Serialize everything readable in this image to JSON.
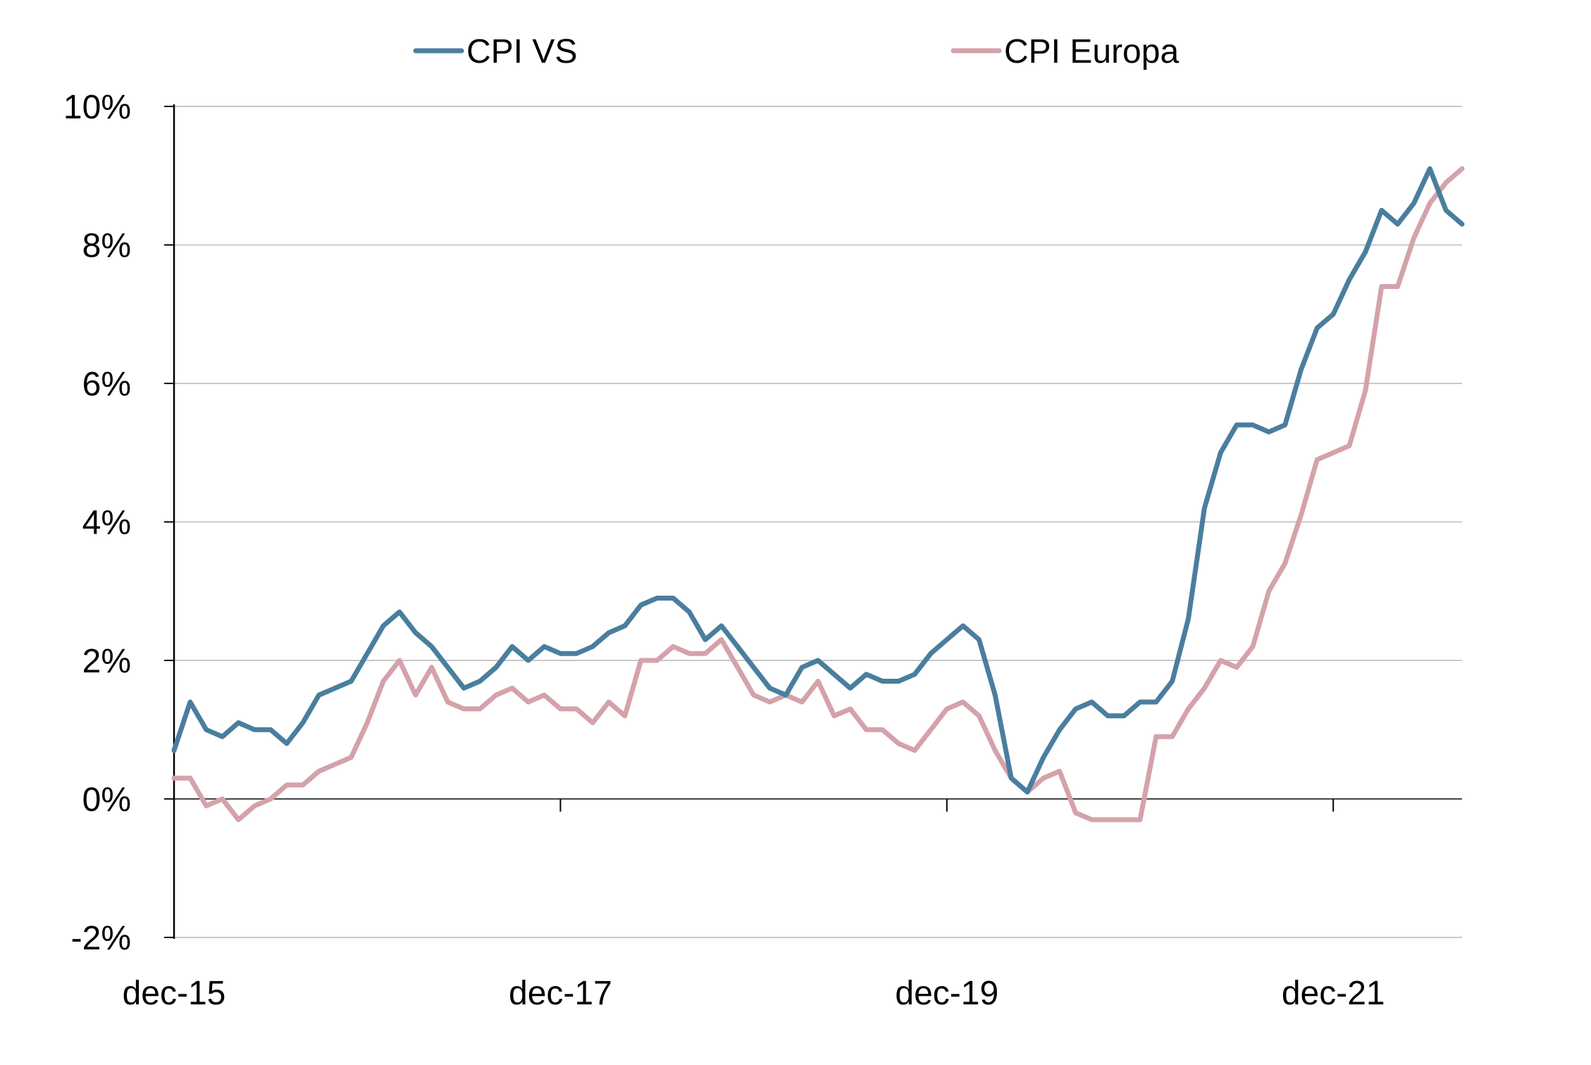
{
  "chart_data": {
    "type": "line",
    "title": "",
    "xlabel": "",
    "ylabel": "",
    "x_tick_labels": [
      "dec-15",
      "dec-17",
      "dec-19",
      "dec-21"
    ],
    "y_tick_labels": [
      "-2%",
      "0%",
      "2%",
      "4%",
      "6%",
      "8%",
      "10%"
    ],
    "ylim": [
      -2,
      10
    ],
    "x_range": [
      "2015-12",
      "2022-08"
    ],
    "grid": "horizontal",
    "legend_position": "top",
    "x": [
      "2015-12",
      "2016-01",
      "2016-02",
      "2016-03",
      "2016-04",
      "2016-05",
      "2016-06",
      "2016-07",
      "2016-08",
      "2016-09",
      "2016-10",
      "2016-11",
      "2016-12",
      "2017-01",
      "2017-02",
      "2017-03",
      "2017-04",
      "2017-05",
      "2017-06",
      "2017-07",
      "2017-08",
      "2017-09",
      "2017-10",
      "2017-11",
      "2017-12",
      "2018-01",
      "2018-02",
      "2018-03",
      "2018-04",
      "2018-05",
      "2018-06",
      "2018-07",
      "2018-08",
      "2018-09",
      "2018-10",
      "2018-11",
      "2018-12",
      "2019-01",
      "2019-02",
      "2019-03",
      "2019-04",
      "2019-05",
      "2019-06",
      "2019-07",
      "2019-08",
      "2019-09",
      "2019-10",
      "2019-11",
      "2019-12",
      "2020-01",
      "2020-02",
      "2020-03",
      "2020-04",
      "2020-05",
      "2020-06",
      "2020-07",
      "2020-08",
      "2020-09",
      "2020-10",
      "2020-11",
      "2020-12",
      "2021-01",
      "2021-02",
      "2021-03",
      "2021-04",
      "2021-05",
      "2021-06",
      "2021-07",
      "2021-08",
      "2021-09",
      "2021-10",
      "2021-11",
      "2021-12",
      "2022-01",
      "2022-02",
      "2022-03",
      "2022-04",
      "2022-05",
      "2022-06",
      "2022-07",
      "2022-08"
    ],
    "series": [
      {
        "name": "CPI VS",
        "color": "#4a7e9e",
        "values": [
          0.7,
          1.4,
          1.0,
          0.9,
          1.1,
          1.0,
          1.0,
          0.8,
          1.1,
          1.5,
          1.6,
          1.7,
          2.1,
          2.5,
          2.7,
          2.4,
          2.2,
          1.9,
          1.6,
          1.7,
          1.9,
          2.2,
          2.0,
          2.2,
          2.1,
          2.1,
          2.2,
          2.4,
          2.5,
          2.8,
          2.9,
          2.9,
          2.7,
          2.3,
          2.5,
          2.2,
          1.9,
          1.6,
          1.5,
          1.9,
          2.0,
          1.8,
          1.6,
          1.8,
          1.7,
          1.7,
          1.8,
          2.1,
          2.3,
          2.5,
          2.3,
          1.5,
          0.3,
          0.1,
          0.6,
          1.0,
          1.3,
          1.4,
          1.2,
          1.2,
          1.4,
          1.4,
          1.7,
          2.6,
          4.2,
          5.0,
          5.4,
          5.4,
          5.3,
          5.4,
          6.2,
          6.8,
          7.0,
          7.5,
          7.9,
          8.5,
          8.3,
          8.6,
          9.1,
          8.5,
          8.3
        ]
      },
      {
        "name": "CPI Europa",
        "color": "#d4a2aa",
        "values": [
          0.3,
          0.3,
          -0.1,
          0.0,
          -0.3,
          -0.1,
          0.0,
          0.2,
          0.2,
          0.4,
          0.5,
          0.6,
          1.1,
          1.7,
          2.0,
          1.5,
          1.9,
          1.4,
          1.3,
          1.3,
          1.5,
          1.6,
          1.4,
          1.5,
          1.3,
          1.3,
          1.1,
          1.4,
          1.2,
          2.0,
          2.0,
          2.2,
          2.1,
          2.1,
          2.3,
          1.9,
          1.5,
          1.4,
          1.5,
          1.4,
          1.7,
          1.2,
          1.3,
          1.0,
          1.0,
          0.8,
          0.7,
          1.0,
          1.3,
          1.4,
          1.2,
          0.7,
          0.3,
          0.1,
          0.3,
          0.4,
          -0.2,
          -0.3,
          -0.3,
          -0.3,
          -0.3,
          0.9,
          0.9,
          1.3,
          1.6,
          2.0,
          1.9,
          2.2,
          3.0,
          3.4,
          4.1,
          4.9,
          5.0,
          5.1,
          5.9,
          7.4,
          7.4,
          8.1,
          8.6,
          8.9,
          9.1
        ]
      }
    ]
  }
}
